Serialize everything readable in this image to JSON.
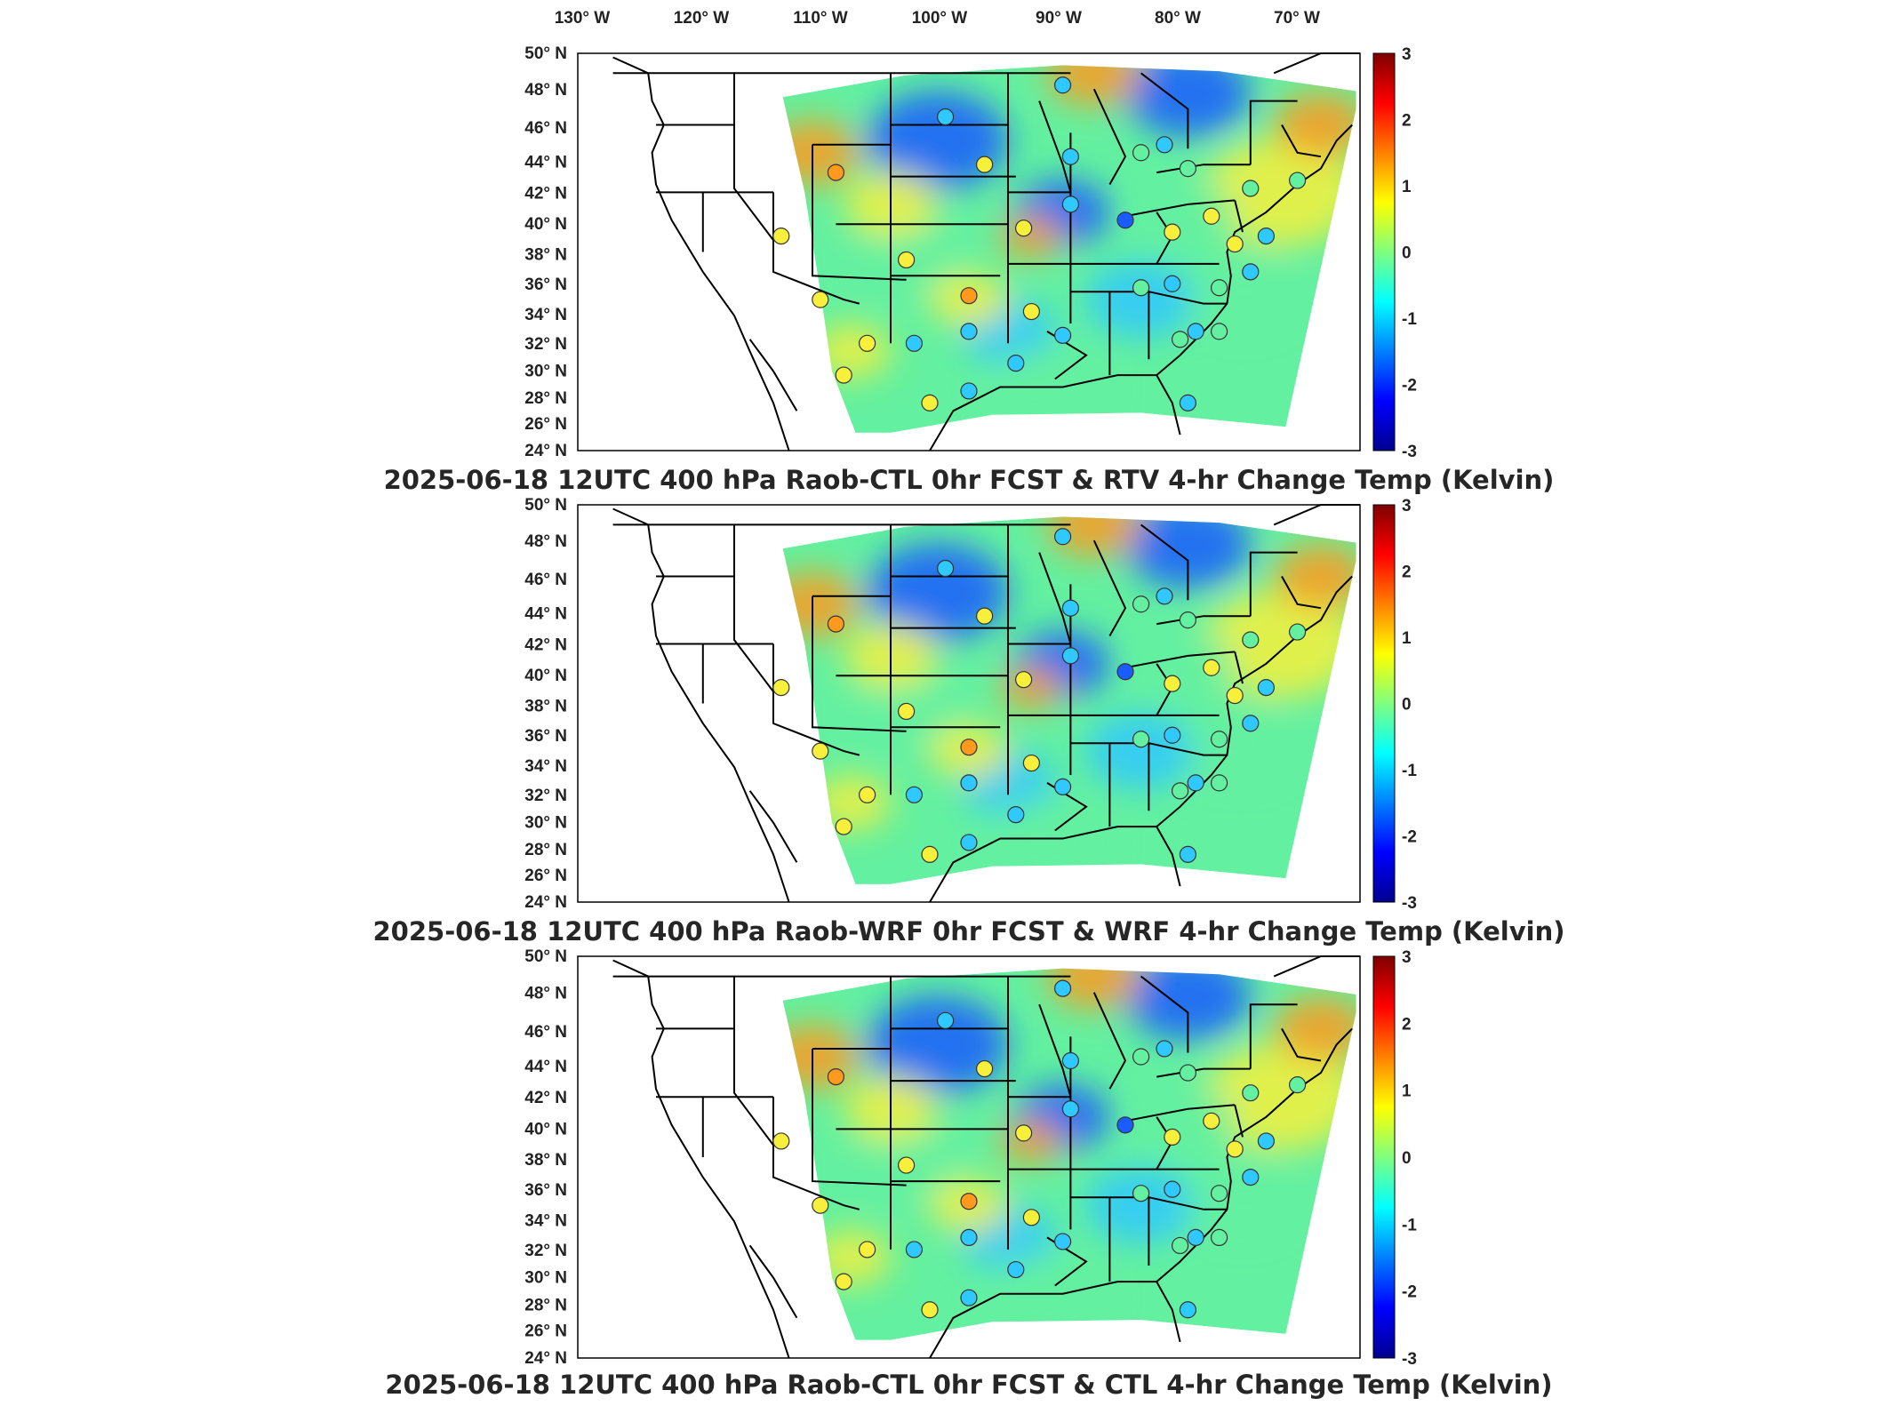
{
  "lon_labels": [
    "130° W",
    "120° W",
    "110° W",
    "100° W",
    "90° W",
    "80° W",
    "70° W"
  ],
  "lat_labels": [
    "50° N",
    "48° N",
    "46° N",
    "44° N",
    "42° N",
    "40° N",
    "38° N",
    "36° N",
    "34° N",
    "32° N",
    "30° N",
    "28° N",
    "26° N",
    "24° N"
  ],
  "colorbar": {
    "ticks": [
      "3",
      "2",
      "1",
      "0",
      "-1",
      "-2",
      "-3"
    ],
    "colormap": "jet",
    "range": [
      -3,
      3
    ]
  },
  "panels": [
    {
      "title": "2025-06-18 12UTC 400 hPa Raob-CTL 0hr FCST & RTV 4-hr Change Temp (Kelvin)",
      "field_colors": [
        "#1a5cff",
        "#2fc8ff",
        "#63f0a0",
        "#f6f03c",
        "#ff9a1e"
      ]
    },
    {
      "title": "2025-06-18 12UTC 400 hPa Raob-WRF 0hr FCST & WRF 4-hr Change Temp (Kelvin)",
      "field_colors": [
        "#1a5cff",
        "#2fc8ff",
        "#63f0a0",
        "#f6f03c",
        "#ff9a1e"
      ]
    },
    {
      "title": "2025-06-18 12UTC 400 hPa Raob-CTL 0hr FCST & CTL 4-hr Change Temp (Kelvin)",
      "field_colors": [
        "#1a5cff",
        "#2fc8ff",
        "#63f0a0",
        "#f6f03c",
        "#ff9a1e"
      ]
    }
  ]
}
